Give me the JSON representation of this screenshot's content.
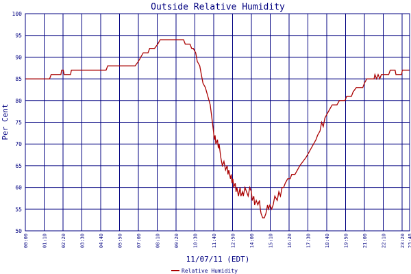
{
  "chart_data": {
    "type": "line",
    "title": "Outside Relative Humidity",
    "xlabel": "11/07/11 (EDT)",
    "ylabel": "Per Cent",
    "ylim": [
      50,
      100
    ],
    "xlim_hours": [
      0,
      23.8
    ],
    "y_ticks": [
      50,
      55,
      60,
      65,
      70,
      75,
      80,
      85,
      90,
      95,
      100
    ],
    "x_ticks": [
      {
        "label": "00:00",
        "h": 0
      },
      {
        "label": "01:10",
        "h": 1.1667
      },
      {
        "label": "02:20",
        "h": 2.3333
      },
      {
        "label": "03:30",
        "h": 3.5
      },
      {
        "label": "04:40",
        "h": 4.6667
      },
      {
        "label": "05:50",
        "h": 5.8333
      },
      {
        "label": "07:00",
        "h": 7.0
      },
      {
        "label": "08:10",
        "h": 8.1667
      },
      {
        "label": "09:20",
        "h": 9.3333
      },
      {
        "label": "10:30",
        "h": 10.5
      },
      {
        "label": "11:40",
        "h": 11.6667
      },
      {
        "label": "12:50",
        "h": 12.8333
      },
      {
        "label": "14:00",
        "h": 14.0
      },
      {
        "label": "15:10",
        "h": 15.1667
      },
      {
        "label": "16:20",
        "h": 16.3333
      },
      {
        "label": "17:30",
        "h": 17.5
      },
      {
        "label": "18:40",
        "h": 18.6667
      },
      {
        "label": "19:50",
        "h": 19.8333
      },
      {
        "label": "21:00",
        "h": 21.0
      },
      {
        "label": "22:10",
        "h": 22.1667
      },
      {
        "label": "23:20",
        "h": 23.3333
      },
      {
        "label": "23:48",
        "h": 23.8
      }
    ],
    "grid": true,
    "legend_position": "bottom-center",
    "series": [
      {
        "name": "Relative Humidity",
        "color": "#aa0000",
        "points": [
          [
            0.0,
            85
          ],
          [
            1.5,
            85
          ],
          [
            1.6,
            86
          ],
          [
            2.2,
            86
          ],
          [
            2.25,
            87
          ],
          [
            2.35,
            87
          ],
          [
            2.4,
            86
          ],
          [
            2.8,
            86
          ],
          [
            2.85,
            87
          ],
          [
            5.0,
            87
          ],
          [
            5.1,
            88
          ],
          [
            6.8,
            88
          ],
          [
            7.0,
            89
          ],
          [
            7.15,
            90
          ],
          [
            7.3,
            91
          ],
          [
            7.6,
            91
          ],
          [
            7.7,
            92
          ],
          [
            8.0,
            92
          ],
          [
            8.2,
            93
          ],
          [
            8.35,
            94
          ],
          [
            9.8,
            94
          ],
          [
            9.9,
            93
          ],
          [
            10.2,
            93
          ],
          [
            10.3,
            92
          ],
          [
            10.4,
            92
          ],
          [
            10.55,
            91
          ],
          [
            10.65,
            89
          ],
          [
            10.8,
            88
          ],
          [
            10.9,
            86
          ],
          [
            11.0,
            84
          ],
          [
            11.15,
            83
          ],
          [
            11.3,
            81
          ],
          [
            11.45,
            79
          ],
          [
            11.55,
            76
          ],
          [
            11.65,
            73
          ],
          [
            11.7,
            71
          ],
          [
            11.75,
            72
          ],
          [
            11.8,
            70
          ],
          [
            11.9,
            71
          ],
          [
            11.95,
            69
          ],
          [
            12.0,
            70
          ],
          [
            12.1,
            67
          ],
          [
            12.15,
            66
          ],
          [
            12.2,
            65
          ],
          [
            12.3,
            66
          ],
          [
            12.4,
            64
          ],
          [
            12.5,
            65
          ],
          [
            12.55,
            63
          ],
          [
            12.6,
            64
          ],
          [
            12.7,
            62
          ],
          [
            12.75,
            63
          ],
          [
            12.8,
            61
          ],
          [
            12.85,
            62
          ],
          [
            12.9,
            60
          ],
          [
            13.0,
            61
          ],
          [
            13.05,
            59
          ],
          [
            13.1,
            60
          ],
          [
            13.2,
            58
          ],
          [
            13.3,
            60
          ],
          [
            13.35,
            58
          ],
          [
            13.45,
            59
          ],
          [
            13.5,
            58
          ],
          [
            13.6,
            60
          ],
          [
            13.7,
            59
          ],
          [
            13.8,
            58
          ],
          [
            13.9,
            60
          ],
          [
            14.0,
            59
          ],
          [
            14.05,
            57
          ],
          [
            14.15,
            58
          ],
          [
            14.2,
            56
          ],
          [
            14.3,
            57
          ],
          [
            14.4,
            56
          ],
          [
            14.5,
            57
          ],
          [
            14.55,
            55
          ],
          [
            14.6,
            54
          ],
          [
            14.7,
            53
          ],
          [
            14.8,
            53
          ],
          [
            14.9,
            54
          ],
          [
            15.0,
            56
          ],
          [
            15.05,
            55
          ],
          [
            15.15,
            56
          ],
          [
            15.25,
            55
          ],
          [
            15.35,
            56
          ],
          [
            15.45,
            58
          ],
          [
            15.6,
            57
          ],
          [
            15.7,
            59
          ],
          [
            15.8,
            58
          ],
          [
            15.9,
            60
          ],
          [
            16.0,
            60
          ],
          [
            16.1,
            61
          ],
          [
            16.25,
            62
          ],
          [
            16.4,
            62
          ],
          [
            16.5,
            63
          ],
          [
            16.7,
            63
          ],
          [
            16.85,
            64
          ],
          [
            17.0,
            65
          ],
          [
            17.2,
            66
          ],
          [
            17.4,
            67
          ],
          [
            17.55,
            68
          ],
          [
            17.7,
            69
          ],
          [
            17.85,
            70
          ],
          [
            18.0,
            71
          ],
          [
            18.1,
            72
          ],
          [
            18.25,
            73
          ],
          [
            18.35,
            75
          ],
          [
            18.45,
            74
          ],
          [
            18.55,
            76
          ],
          [
            18.7,
            77
          ],
          [
            18.85,
            78
          ],
          [
            19.0,
            79
          ],
          [
            19.3,
            79
          ],
          [
            19.45,
            80
          ],
          [
            19.8,
            80
          ],
          [
            19.9,
            81
          ],
          [
            20.2,
            81
          ],
          [
            20.3,
            82
          ],
          [
            20.5,
            83
          ],
          [
            20.9,
            83
          ],
          [
            21.0,
            84
          ],
          [
            21.15,
            85
          ],
          [
            21.6,
            85
          ],
          [
            21.65,
            86
          ],
          [
            21.75,
            85
          ],
          [
            21.85,
            86
          ],
          [
            21.95,
            85
          ],
          [
            22.05,
            86
          ],
          [
            22.5,
            86
          ],
          [
            22.6,
            87
          ],
          [
            22.9,
            87
          ],
          [
            22.95,
            86
          ],
          [
            23.3,
            86
          ],
          [
            23.35,
            87
          ],
          [
            23.8,
            87
          ]
        ]
      }
    ]
  }
}
